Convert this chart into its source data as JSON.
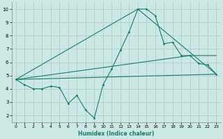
{
  "xlabel": "Humidex (Indice chaleur)",
  "bg_color": "#cce8e4",
  "grid_color": "#b0d0cc",
  "line_color": "#1a7a6e",
  "xlim": [
    -0.5,
    23.5
  ],
  "ylim": [
    1.5,
    10.5
  ],
  "xticks": [
    0,
    1,
    2,
    3,
    4,
    5,
    6,
    7,
    8,
    9,
    10,
    11,
    12,
    13,
    14,
    15,
    16,
    17,
    18,
    19,
    20,
    21,
    22,
    23
  ],
  "yticks": [
    2,
    3,
    4,
    5,
    6,
    7,
    8,
    9,
    10
  ],
  "series1_x": [
    0,
    1,
    2,
    3,
    4,
    5,
    6,
    7,
    8,
    9,
    10,
    11,
    12,
    13,
    14,
    15,
    16,
    17,
    18,
    19,
    20,
    21,
    22,
    23
  ],
  "series1_y": [
    4.7,
    4.3,
    4.0,
    4.0,
    4.2,
    4.1,
    2.9,
    3.5,
    2.4,
    1.8,
    4.3,
    5.5,
    6.9,
    8.3,
    10.0,
    10.0,
    9.5,
    7.4,
    7.5,
    6.5,
    6.5,
    5.9,
    5.8,
    5.1
  ],
  "series2_x": [
    0,
    23
  ],
  "series2_y": [
    4.7,
    5.1
  ],
  "series3_x": [
    0,
    14,
    23
  ],
  "series3_y": [
    4.7,
    10.0,
    5.1
  ],
  "series4_x": [
    0,
    20,
    23
  ],
  "series4_y": [
    4.7,
    6.5,
    6.5
  ]
}
